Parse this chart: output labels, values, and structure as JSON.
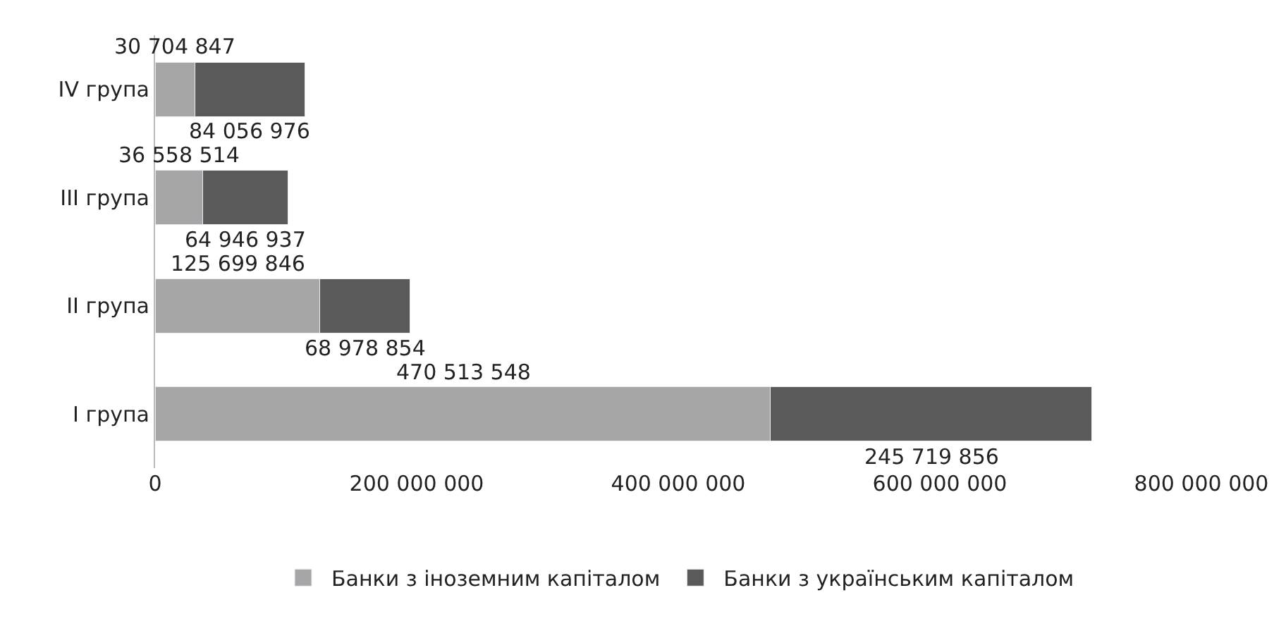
{
  "chart_data": {
    "type": "bar",
    "orientation": "horizontal",
    "stacked": true,
    "categories": [
      "IV група",
      "III група",
      "II група",
      "I група"
    ],
    "series": [
      {
        "name": "Банки з іноземним капіталом",
        "color": "#a6a6a6",
        "values": [
          30704847,
          36558514,
          125699846,
          470513548
        ],
        "value_labels": [
          "30 704 847",
          "36 558 514",
          "125 699 846",
          "470 513 548"
        ]
      },
      {
        "name": "Банки з українським капіталом",
        "color": "#5a5a5a",
        "values": [
          84056976,
          64946937,
          68978854,
          245719856
        ],
        "value_labels": [
          "84 056 976",
          "64 946 937",
          "68 978 854",
          "245 719 856"
        ]
      }
    ],
    "xlim": [
      0,
      800000000
    ],
    "xticks": [
      0,
      {
        "value": 200000000,
        "label": "200 000 000"
      },
      {
        "value": 400000000,
        "label": "400 000 000"
      },
      {
        "value": 600000000,
        "label": "600 000 000"
      },
      {
        "value": 800000000,
        "label": "800 000 000"
      }
    ],
    "legend": "bottom"
  }
}
